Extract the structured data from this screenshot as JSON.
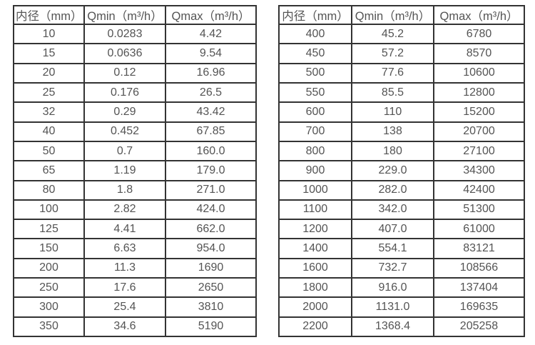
{
  "colors": {
    "background": "#ffffff",
    "border": "#333333",
    "text": "#545454"
  },
  "tables": [
    {
      "name": "flow-spec-table-left",
      "headers": [
        "内径（mm）",
        "Qmin（m³/h）",
        "Qmax（m³/h）"
      ],
      "rows": [
        [
          "10",
          "0.0283",
          "4.42"
        ],
        [
          "15",
          "0.0636",
          "9.54"
        ],
        [
          "20",
          "0.12",
          "16.96"
        ],
        [
          "25",
          "0.176",
          "26.5"
        ],
        [
          "32",
          "0.29",
          "43.42"
        ],
        [
          "40",
          "0.452",
          "67.85"
        ],
        [
          "50",
          "0.7",
          "160.0"
        ],
        [
          "65",
          "1.19",
          "179.0"
        ],
        [
          "80",
          "1.8",
          "271.0"
        ],
        [
          "100",
          "2.82",
          "424.0"
        ],
        [
          "125",
          "4.41",
          "662.0"
        ],
        [
          "150",
          "6.63",
          "954.0"
        ],
        [
          "200",
          "11.3",
          "1690"
        ],
        [
          "250",
          "17.6",
          "2650"
        ],
        [
          "300",
          "25.4",
          "3810"
        ],
        [
          "350",
          "34.6",
          "5190"
        ]
      ]
    },
    {
      "name": "flow-spec-table-right",
      "headers": [
        "内径（mm）",
        "Qmin（m³/h）",
        "Qmax（m³/h）"
      ],
      "rows": [
        [
          "400",
          "45.2",
          "6780"
        ],
        [
          "450",
          "57.2",
          "8570"
        ],
        [
          "500",
          "77.6",
          "10600"
        ],
        [
          "550",
          "85.5",
          "12800"
        ],
        [
          "600",
          "110",
          "15200"
        ],
        [
          "700",
          "138",
          "20700"
        ],
        [
          "800",
          "180",
          "27100"
        ],
        [
          "900",
          "229.0",
          "34300"
        ],
        [
          "1000",
          "282.0",
          "42400"
        ],
        [
          "1100",
          "342.0",
          "51300"
        ],
        [
          "1200",
          "407.0",
          "61000"
        ],
        [
          "1400",
          "554.1",
          "83121"
        ],
        [
          "1600",
          "732.7",
          "108566"
        ],
        [
          "1800",
          "916.0",
          "137404"
        ],
        [
          "2000",
          "1131.0",
          "169635"
        ],
        [
          "2200",
          "1368.4",
          "205258"
        ]
      ]
    }
  ]
}
